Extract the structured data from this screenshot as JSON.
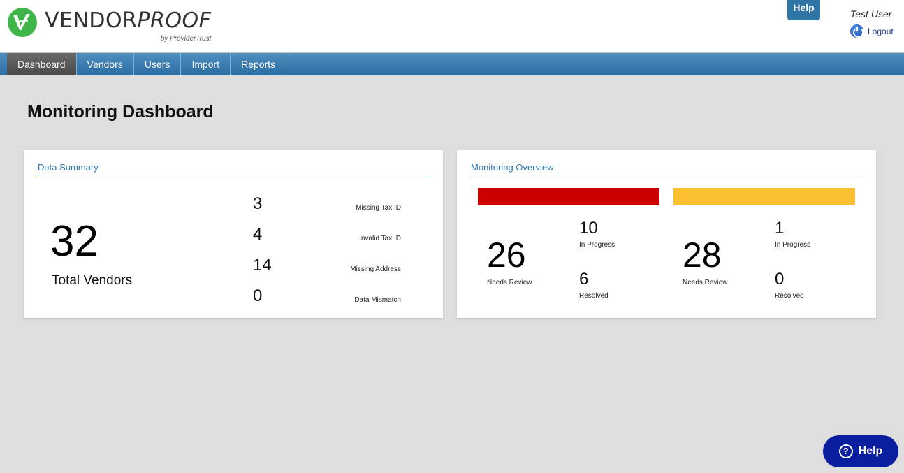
{
  "brand": {
    "name_part1": "VENDOR",
    "name_part2": "PROOF",
    "byline": "by ProviderTrust",
    "logo_color": "#3fb54a"
  },
  "header": {
    "help_tab": "Help",
    "user_name": "Test User",
    "logout_label": "Logout"
  },
  "nav": {
    "items": [
      {
        "label": "Dashboard",
        "active": true
      },
      {
        "label": "Vendors"
      },
      {
        "label": "Users"
      },
      {
        "label": "Import"
      },
      {
        "label": "Reports"
      }
    ]
  },
  "page": {
    "title": "Monitoring Dashboard"
  },
  "data_summary": {
    "title": "Data Summary",
    "total_value": "32",
    "total_label": "Total Vendors",
    "metrics": [
      {
        "value": "3",
        "label": "Missing Tax ID"
      },
      {
        "value": "4",
        "label": "Invalid Tax ID"
      },
      {
        "value": "14",
        "label": "Missing Address"
      },
      {
        "value": "0",
        "label": "Data Mismatch"
      }
    ]
  },
  "monitoring_overview": {
    "title": "Monitoring Overview",
    "groups": [
      {
        "color": "#cc0000",
        "needs_review_value": "26",
        "needs_review_label": "Needs Review",
        "in_progress_value": "10",
        "in_progress_label": "In Progress",
        "resolved_value": "6",
        "resolved_label": "Resolved"
      },
      {
        "color": "#fbbf32",
        "needs_review_value": "28",
        "needs_review_label": "Needs Review",
        "in_progress_value": "1",
        "in_progress_label": "In Progress",
        "resolved_value": "0",
        "resolved_label": "Resolved"
      }
    ]
  },
  "floating_help": {
    "label": "Help",
    "icon": "question-circle-icon",
    "icon_glyph": "?",
    "color": "#0a1fa0"
  }
}
